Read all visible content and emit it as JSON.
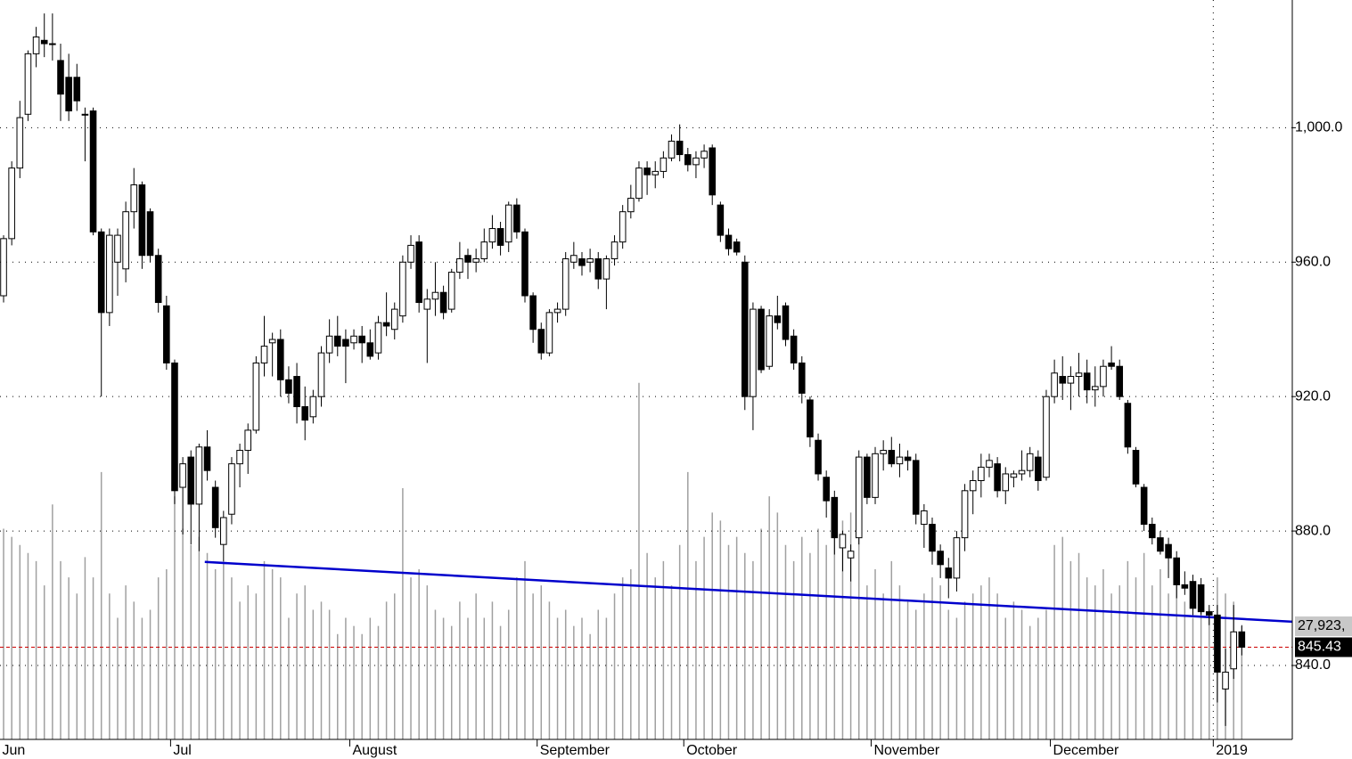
{
  "chart_data": {
    "type": "candlestick",
    "xlim": [
      -0.44,
      158.2
    ],
    "ylim": [
      818,
      1038
    ],
    "yticks": [
      {
        "value": 1000,
        "label": "1,000.0"
      },
      {
        "value": 960,
        "label": "960.0"
      },
      {
        "value": 920,
        "label": "920.0"
      },
      {
        "value": 880,
        "label": "880.0"
      },
      {
        "value": 840,
        "label": "840.0"
      }
    ],
    "xticks": [
      {
        "value": 0,
        "label": "Jun"
      },
      {
        "value": 21,
        "label": "Jul"
      },
      {
        "value": 43,
        "label": "August"
      },
      {
        "value": 66,
        "label": "September"
      },
      {
        "value": 84,
        "label": "October"
      },
      {
        "value": 107,
        "label": "November"
      },
      {
        "value": 129,
        "label": "December"
      },
      {
        "value": 149,
        "label": "2019"
      }
    ],
    "grid": true,
    "up_color": "#ffffff",
    "down_color": "#000000",
    "open": [
      950,
      967,
      988,
      1004,
      1022,
      1026,
      1025,
      1020,
      1015,
      1015,
      1004,
      1005,
      969,
      945,
      960,
      958,
      975,
      983,
      975,
      962,
      947,
      930,
      893,
      902,
      888,
      905,
      893,
      876,
      885,
      900,
      904,
      910,
      930,
      936,
      937,
      925,
      926,
      917,
      914,
      920,
      933,
      938,
      937,
      936,
      938,
      936,
      933,
      942,
      940,
      944,
      960,
      966,
      946,
      949,
      951,
      946,
      957,
      962,
      960,
      961,
      966,
      970,
      966,
      977,
      969,
      950,
      940,
      933,
      945,
      946,
      960,
      961,
      960,
      961,
      955,
      961,
      966,
      975,
      979,
      988,
      986,
      987,
      991,
      996,
      992,
      989,
      991,
      994,
      977,
      968,
      966,
      960,
      920,
      946,
      929,
      944,
      947,
      938,
      930,
      919,
      907,
      896,
      890,
      875,
      872,
      878,
      902,
      890,
      903,
      904,
      900,
      902,
      901,
      882,
      882,
      874,
      869,
      866,
      878,
      892,
      895,
      899,
      900,
      892,
      896,
      897,
      898,
      902,
      896,
      920,
      926,
      924,
      926,
      927,
      922,
      923,
      930,
      929,
      918,
      904,
      893,
      882,
      878,
      876,
      872,
      864,
      865,
      864,
      856,
      855,
      833,
      839,
      850
    ],
    "high": [
      968,
      990,
      1008,
      1023,
      1030,
      1034,
      1034,
      1025,
      1022,
      1019,
      1006,
      1006,
      970,
      970,
      970,
      978,
      988,
      984,
      976,
      964,
      950,
      931,
      902,
      904,
      906,
      910,
      895,
      886,
      902,
      906,
      912,
      932,
      944,
      939,
      940,
      929,
      930,
      923,
      922,
      935,
      943,
      944,
      940,
      940,
      941,
      940,
      944,
      951,
      948,
      962,
      968,
      968,
      952,
      960,
      953,
      958,
      966,
      964,
      964,
      970,
      974,
      972,
      978,
      979,
      970,
      951,
      942,
      946,
      948,
      963,
      966,
      963,
      964,
      963,
      962,
      968,
      977,
      983,
      990,
      990,
      990,
      993,
      998,
      1001,
      994,
      993,
      995,
      995,
      978,
      970,
      967,
      962,
      948,
      947,
      946,
      950,
      948,
      940,
      932,
      920,
      909,
      898,
      892,
      880,
      876,
      904,
      903,
      905,
      907,
      908,
      906,
      904,
      903,
      888,
      884,
      876,
      872,
      880,
      894,
      898,
      903,
      903,
      902,
      899,
      898,
      904,
      905,
      904,
      922,
      931,
      932,
      929,
      933,
      931,
      929,
      931,
      935,
      931,
      919,
      905,
      894,
      884,
      880,
      878,
      874,
      868,
      867,
      866,
      858,
      858,
      845,
      858,
      852
    ],
    "low": [
      948,
      965,
      985,
      1002,
      1018,
      1021,
      1020,
      1002,
      1002,
      1005,
      990,
      968,
      920,
      941,
      950,
      954,
      970,
      958,
      960,
      945,
      928,
      888,
      879,
      876,
      874,
      895,
      878,
      871,
      882,
      893,
      897,
      909,
      926,
      926,
      920,
      918,
      912,
      907,
      912,
      917,
      930,
      932,
      924,
      934,
      930,
      931,
      931,
      938,
      937,
      942,
      958,
      945,
      930,
      944,
      943,
      945,
      955,
      955,
      957,
      960,
      964,
      962,
      963,
      967,
      948,
      936,
      931,
      932,
      942,
      944,
      958,
      956,
      957,
      952,
      946,
      959,
      964,
      973,
      978,
      980,
      982,
      985,
      990,
      990,
      987,
      985,
      988,
      977,
      966,
      962,
      962,
      916,
      910,
      927,
      928,
      940,
      935,
      928,
      918,
      905,
      895,
      884,
      873,
      868,
      865,
      876,
      888,
      888,
      898,
      899,
      896,
      898,
      882,
      875,
      870,
      866,
      860,
      862,
      874,
      885,
      890,
      896,
      890,
      888,
      893,
      895,
      896,
      892,
      895,
      918,
      919,
      916,
      920,
      918,
      917,
      920,
      928,
      919,
      903,
      893,
      880,
      876,
      873,
      866,
      860,
      861,
      855,
      855,
      852,
      829,
      822,
      836,
      843
    ],
    "close": [
      967,
      988,
      1003,
      1022,
      1027,
      1025,
      1025,
      1010,
      1005,
      1008,
      1004,
      969,
      945,
      968,
      968,
      975,
      983,
      962,
      962,
      948,
      930,
      892,
      900,
      888,
      905,
      898,
      881,
      884,
      900,
      904,
      910,
      930,
      935,
      937,
      925,
      921,
      917,
      913,
      920,
      933,
      938,
      935,
      935,
      938,
      936,
      932,
      942,
      941,
      946,
      960,
      965,
      948,
      949,
      951,
      945,
      957,
      961,
      960,
      961,
      966,
      970,
      965,
      977,
      969,
      950,
      940,
      933,
      945,
      946,
      961,
      962,
      959,
      961,
      955,
      961,
      966,
      975,
      979,
      988,
      986,
      987,
      991,
      996,
      992,
      989,
      991,
      993,
      980,
      968,
      964,
      963,
      920,
      946,
      928,
      944,
      942,
      937,
      930,
      921,
      908,
      897,
      889,
      878,
      879,
      874,
      902,
      890,
      903,
      904,
      900,
      902,
      901,
      885,
      886,
      874,
      870,
      866,
      878,
      892,
      895,
      899,
      901,
      892,
      897,
      897,
      898,
      903,
      895,
      920,
      927,
      924,
      926,
      927,
      922,
      923,
      929,
      929,
      920,
      905,
      894,
      882,
      878,
      874,
      872,
      864,
      863,
      857,
      856,
      855,
      838,
      838,
      850,
      845.43
    ],
    "volume": {
      "color": "#a0a0a0",
      "vlim": [
        0,
        182500
      ],
      "last_label": "27,923,",
      "values": [
        52000,
        50000,
        48000,
        46000,
        44000,
        38000,
        58000,
        44000,
        40000,
        36000,
        45000,
        40000,
        66000,
        36000,
        30000,
        38000,
        34000,
        30000,
        32000,
        40000,
        42000,
        60000,
        52000,
        48000,
        50000,
        46000,
        42000,
        44000,
        40000,
        34000,
        38000,
        36000,
        44000,
        42000,
        40000,
        30000,
        36000,
        38000,
        32000,
        34000,
        32000,
        26000,
        30000,
        28000,
        26000,
        30000,
        28000,
        34000,
        36000,
        62000,
        40000,
        42000,
        38000,
        32000,
        30000,
        28000,
        34000,
        30000,
        36000,
        30000,
        34000,
        28000,
        32000,
        40000,
        44000,
        36000,
        38000,
        34000,
        30000,
        32000,
        28000,
        30000,
        26000,
        32000,
        30000,
        36000,
        40000,
        42000,
        88000,
        46000,
        40000,
        44000,
        38000,
        48000,
        66000,
        44000,
        50000,
        56000,
        54000,
        48000,
        50000,
        46000,
        44000,
        52000,
        60000,
        56000,
        48000,
        44000,
        50000,
        46000,
        52000,
        48000,
        50000,
        54000,
        56000,
        60000,
        38000,
        42000,
        36000,
        44000,
        38000,
        34000,
        32000,
        36000,
        40000,
        38000,
        32000,
        30000,
        34000,
        36000,
        38000,
        40000,
        36000,
        30000,
        34000,
        32000,
        28000,
        30000,
        32000,
        48000,
        50000,
        44000,
        46000,
        40000,
        38000,
        42000,
        36000,
        38000,
        44000,
        40000,
        46000,
        38000,
        42000,
        36000,
        40000,
        34000,
        30000,
        38000,
        32000,
        40000,
        36000,
        34000,
        27923
      ]
    },
    "trendline": {
      "color": "#0000cc",
      "x": [
        24.7,
        158.3
      ],
      "y": [
        870.8,
        853.0
      ]
    },
    "last_line_color": "#cc0000"
  }
}
